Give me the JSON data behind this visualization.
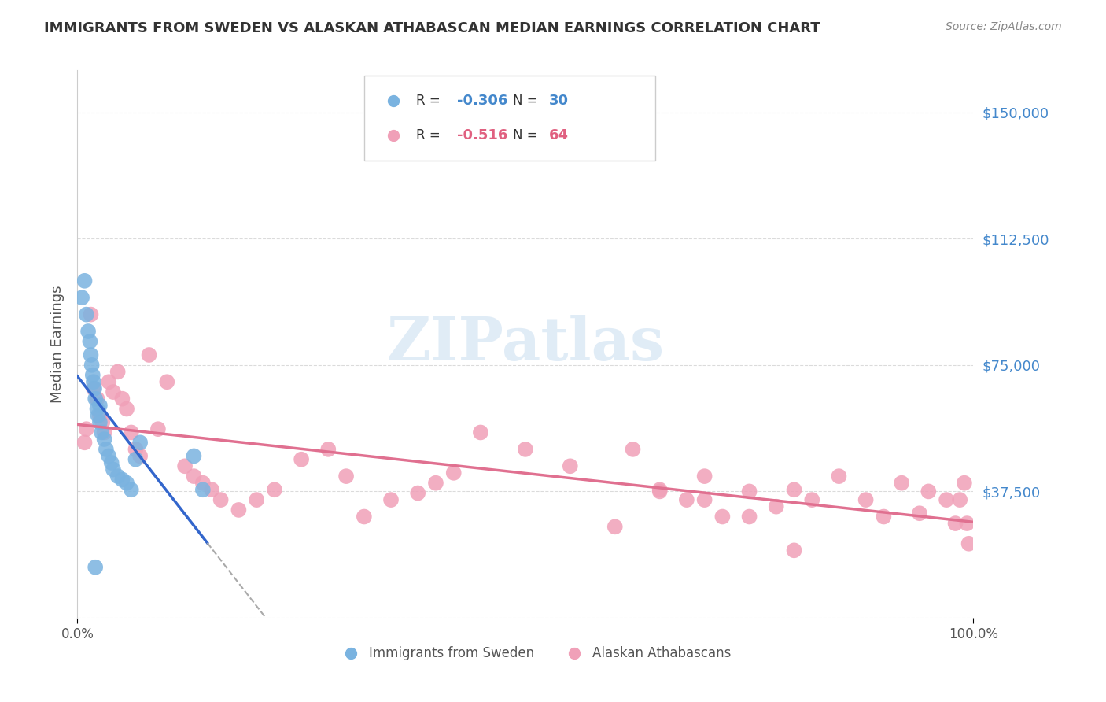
{
  "title": "IMMIGRANTS FROM SWEDEN VS ALASKAN ATHABASCAN MEDIAN EARNINGS CORRELATION CHART",
  "source": "Source: ZipAtlas.com",
  "ylabel": "Median Earnings",
  "xlabel": "",
  "xlim": [
    0.0,
    1.0
  ],
  "ylim": [
    0,
    162500
  ],
  "yticks": [
    0,
    37500,
    75000,
    112500,
    150000
  ],
  "ytick_labels": [
    "",
    "$37,500",
    "$75,000",
    "$112,500",
    "$150,000"
  ],
  "xtick_labels": [
    "0.0%",
    "100.0%"
  ],
  "watermark": "ZIPatlas",
  "legend_label1": "Immigrants from Sweden",
  "legend_label2": "Alaskan Athabascans",
  "R1": -0.306,
  "N1": 30,
  "R2": -0.516,
  "N2": 64,
  "blue_color": "#7ab3e0",
  "pink_color": "#f0a0b8",
  "blue_line_color": "#3366cc",
  "pink_line_color": "#e07090",
  "grid_color": "#cccccc",
  "title_color": "#333333",
  "axis_label_color": "#555555",
  "ytick_color": "#4488cc",
  "background_color": "#ffffff",
  "sweden_x": [
    0.005,
    0.008,
    0.01,
    0.012,
    0.014,
    0.015,
    0.016,
    0.017,
    0.018,
    0.019,
    0.02,
    0.022,
    0.023,
    0.025,
    0.027,
    0.03,
    0.032,
    0.035,
    0.038,
    0.04,
    0.045,
    0.05,
    0.055,
    0.06,
    0.065,
    0.07,
    0.13,
    0.14,
    0.02,
    0.025
  ],
  "sweden_y": [
    95000,
    100000,
    90000,
    85000,
    82000,
    78000,
    75000,
    72000,
    70000,
    68000,
    65000,
    62000,
    60000,
    58000,
    55000,
    53000,
    50000,
    48000,
    46000,
    44000,
    42000,
    41000,
    40000,
    38000,
    47000,
    52000,
    48000,
    38000,
    15000,
    63000
  ],
  "athabascan_x": [
    0.008,
    0.01,
    0.015,
    0.018,
    0.022,
    0.025,
    0.028,
    0.03,
    0.035,
    0.04,
    0.045,
    0.05,
    0.055,
    0.06,
    0.065,
    0.07,
    0.08,
    0.09,
    0.1,
    0.12,
    0.13,
    0.14,
    0.15,
    0.16,
    0.18,
    0.2,
    0.22,
    0.25,
    0.28,
    0.3,
    0.32,
    0.35,
    0.38,
    0.4,
    0.42,
    0.45,
    0.5,
    0.55,
    0.6,
    0.62,
    0.65,
    0.68,
    0.7,
    0.72,
    0.75,
    0.78,
    0.8,
    0.82,
    0.85,
    0.88,
    0.9,
    0.92,
    0.94,
    0.95,
    0.97,
    0.98,
    0.985,
    0.99,
    0.993,
    0.995,
    0.65,
    0.7,
    0.75,
    0.8
  ],
  "athabascan_y": [
    52000,
    56000,
    90000,
    68000,
    65000,
    60000,
    58000,
    55000,
    70000,
    67000,
    73000,
    65000,
    62000,
    55000,
    50000,
    48000,
    78000,
    56000,
    70000,
    45000,
    42000,
    40000,
    38000,
    35000,
    32000,
    35000,
    38000,
    47000,
    50000,
    42000,
    30000,
    35000,
    37000,
    40000,
    43000,
    55000,
    50000,
    45000,
    27000,
    50000,
    37500,
    35000,
    42000,
    30000,
    37500,
    33000,
    38000,
    35000,
    42000,
    35000,
    30000,
    40000,
    31000,
    37500,
    35000,
    28000,
    35000,
    40000,
    28000,
    22000,
    38000,
    35000,
    30000,
    20000
  ]
}
